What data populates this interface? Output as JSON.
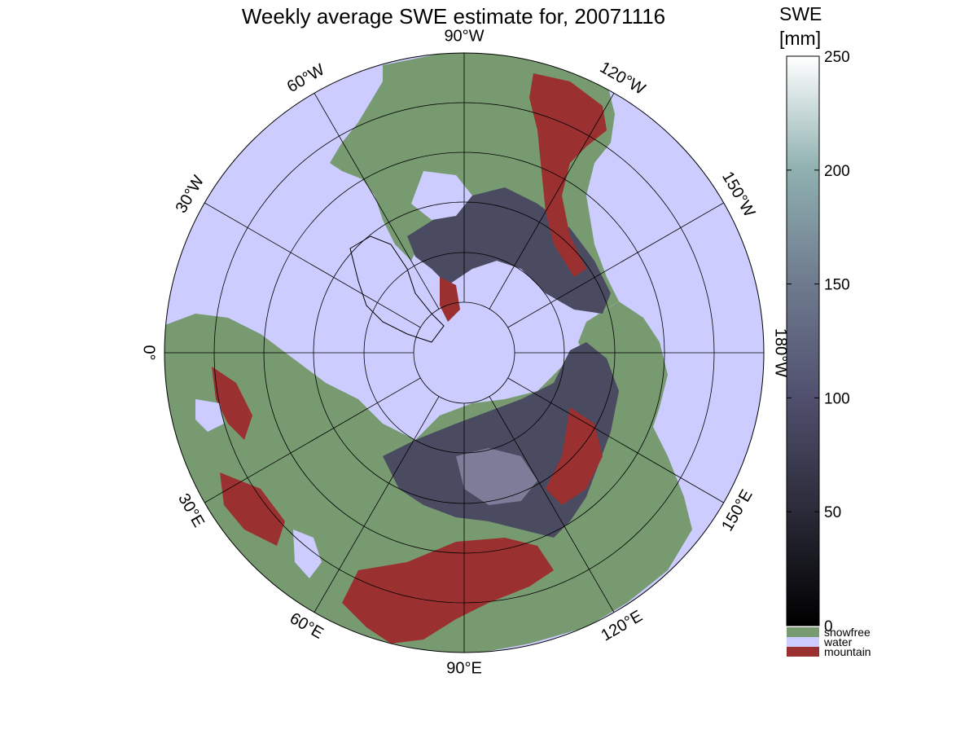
{
  "title": "Weekly average SWE estimate for, 20071116",
  "colorbar": {
    "unit_line1": "SWE",
    "unit_line2": "[mm]",
    "min": 0,
    "max": 250,
    "ticks": [
      "250",
      "200",
      "150",
      "100",
      "50",
      "0"
    ],
    "colors": [
      "#000000",
      "#2a2a38",
      "#50506e",
      "#6e7a8e",
      "#8fb0b0",
      "#ffffff"
    ]
  },
  "legend": [
    {
      "label": "snowfree",
      "color": "#779a71"
    },
    {
      "label": "water",
      "color": "#ccccff"
    },
    {
      "label": "mountain",
      "color": "#9b3030"
    }
  ],
  "map": {
    "projection": "north polar stereographic",
    "water_color": "#ccccff",
    "snowfree_color": "#779a71",
    "mountain_color": "#9b3030",
    "snow_color": "#4a4a60",
    "deep_snow_color": "#8a8aa8",
    "longitude_labels": [
      {
        "text": "90°W"
      },
      {
        "text": "120°W"
      },
      {
        "text": "150°W"
      },
      {
        "text": "180°W"
      },
      {
        "text": "150°E"
      },
      {
        "text": "120°E"
      },
      {
        "text": "90°E"
      },
      {
        "text": "60°E"
      },
      {
        "text": "30°E"
      },
      {
        "text": "0°"
      },
      {
        "text": "30°W"
      },
      {
        "text": "60°W"
      }
    ]
  }
}
